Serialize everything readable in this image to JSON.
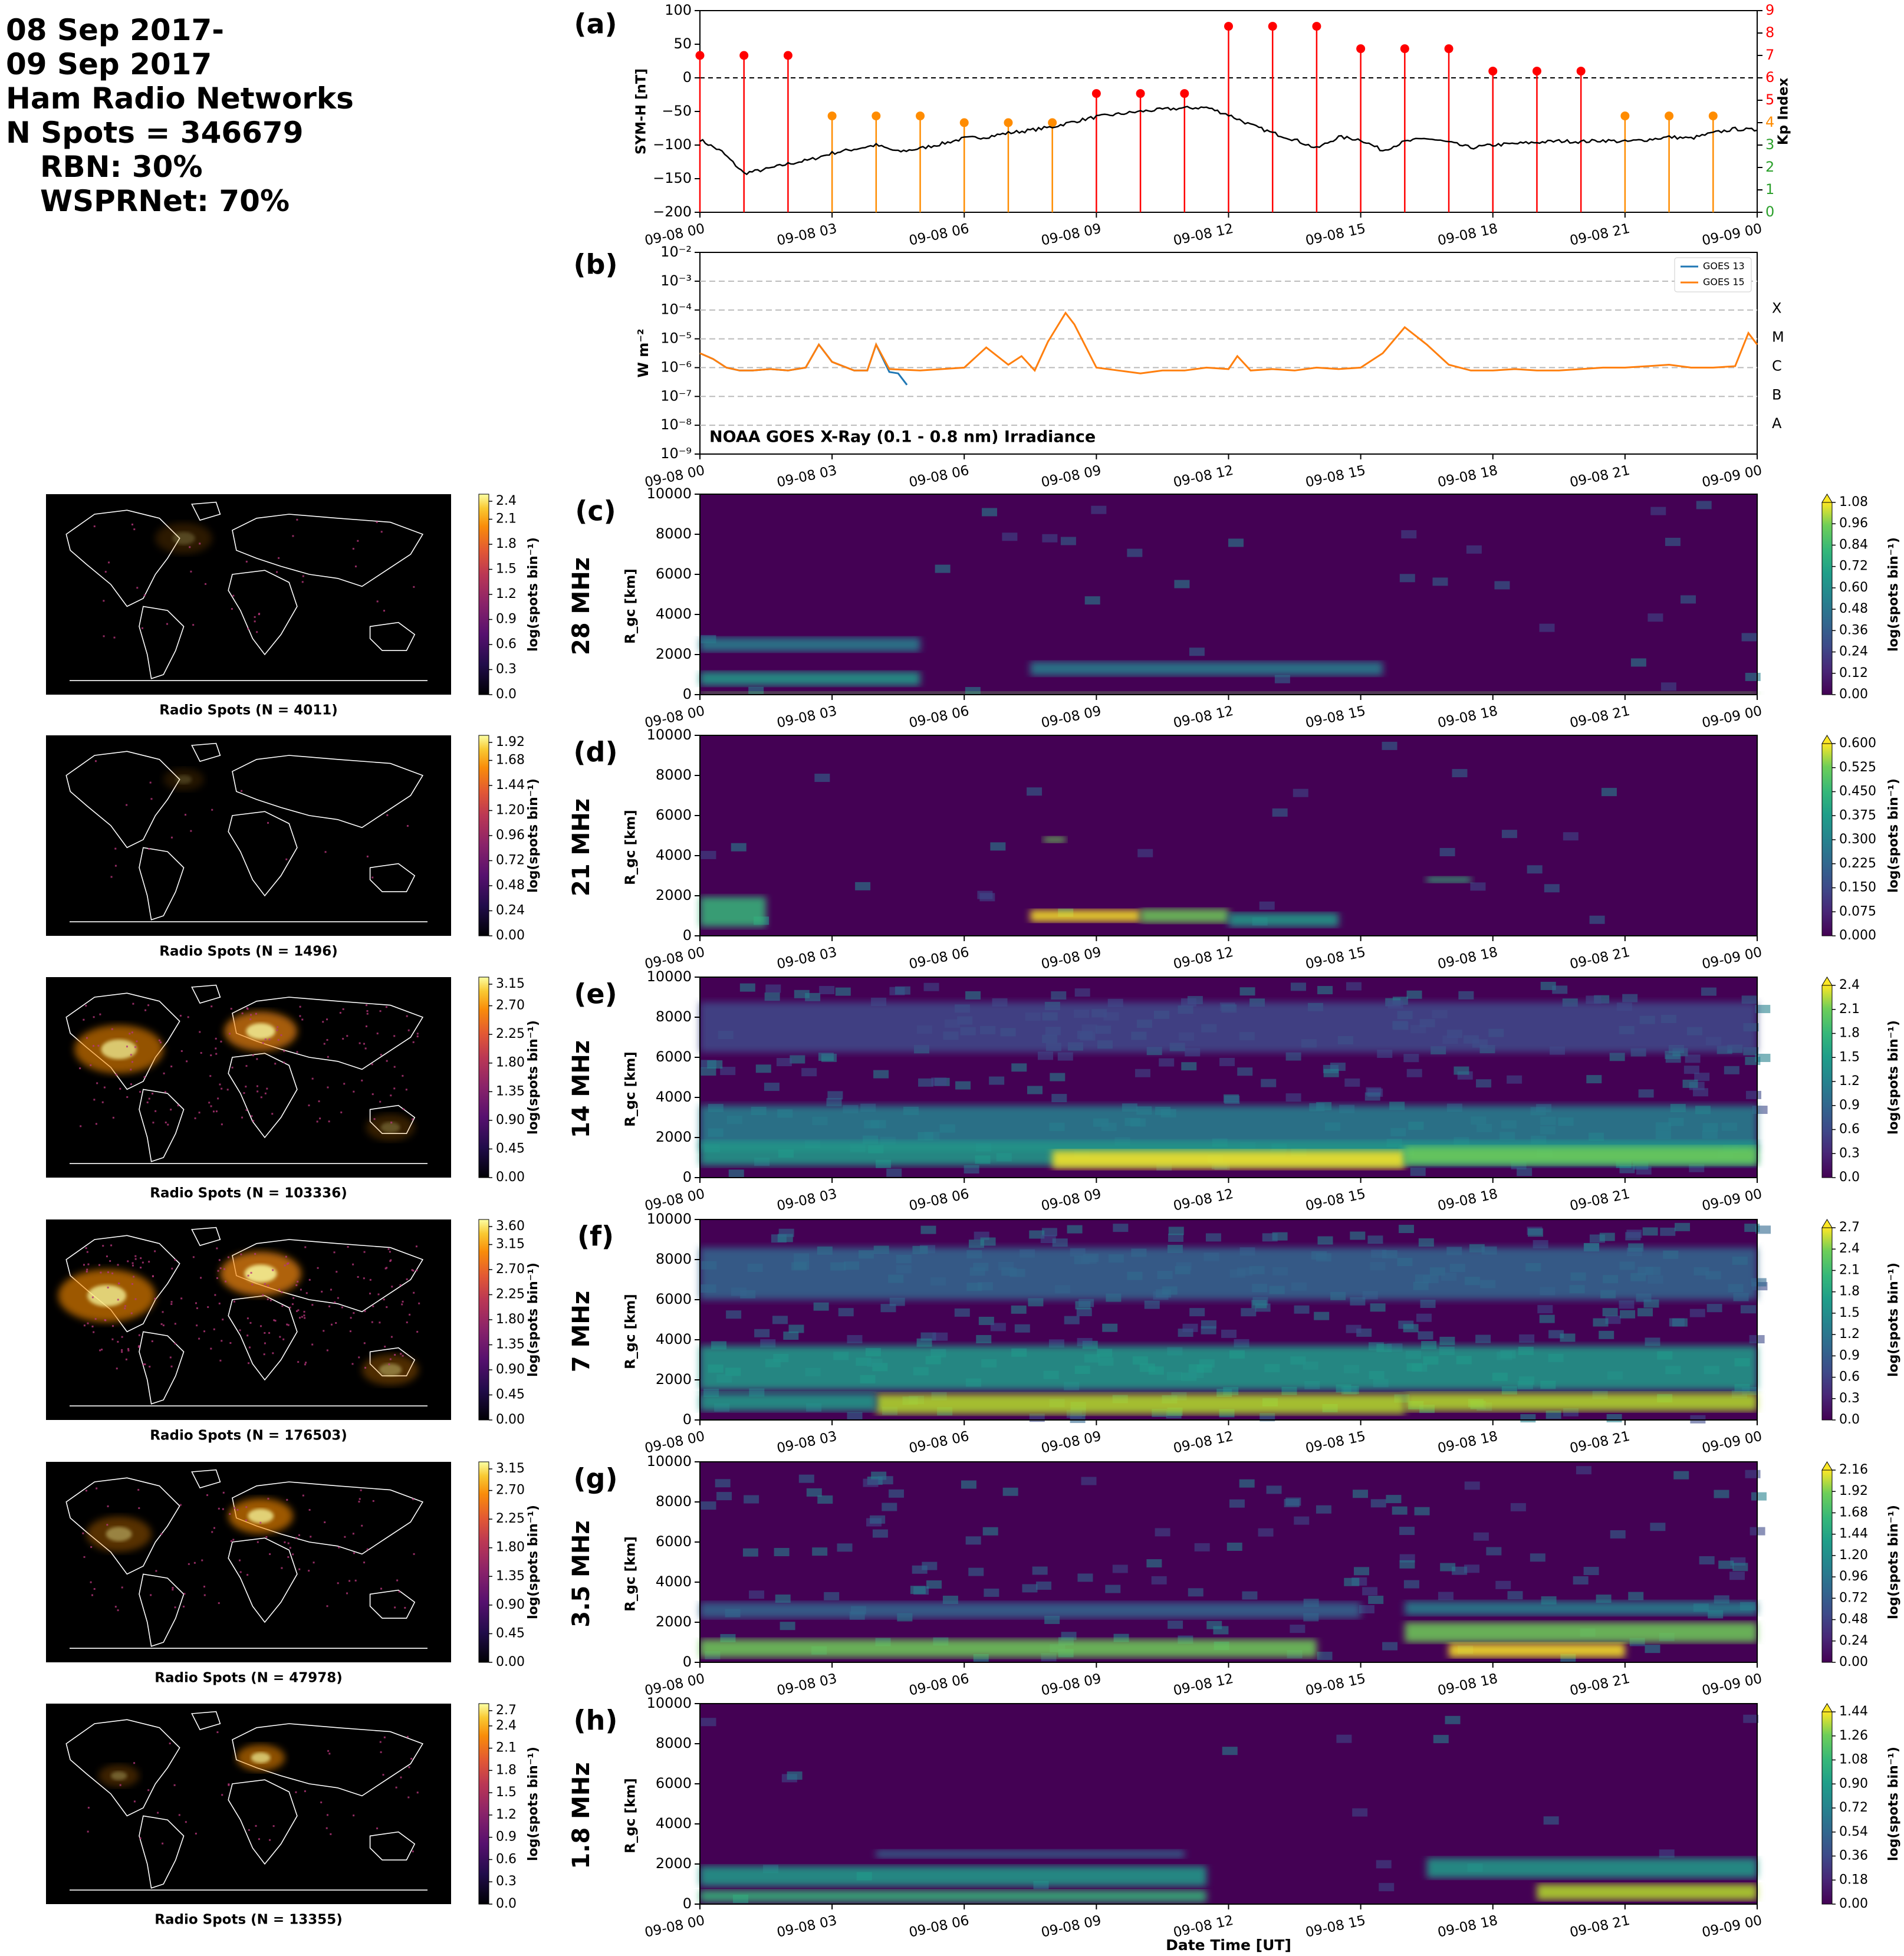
{
  "header": {
    "line1": "08 Sep 2017-",
    "line2": "09 Sep 2017",
    "line3": "Ham Radio Networks",
    "line4": "N Spots = 346679",
    "line5": "RBN: 30%",
    "line6": "WSPRNet: 70%"
  },
  "colors": {
    "symh": "#000000",
    "kp_low": "#ff8c00",
    "kp_high": "#ff0000",
    "kp_axis": "#ff0000",
    "goes13": "#1f77b4",
    "goes15": "#ff7f0e",
    "map_bg": "#000000",
    "coast": "#ffffff",
    "axis": "#000000"
  },
  "time_ticks": [
    "09-08 00",
    "09-08 03",
    "09-08 06",
    "09-08 09",
    "09-08 12",
    "09-08 15",
    "09-08 18",
    "09-08 21",
    "09-09 00"
  ],
  "xlabel": "Date Time [UT]",
  "chart_data": [
    {
      "id": "a",
      "type": "line",
      "panel_label": "(a)",
      "ylabel": "SYM-H [nT]",
      "ylabel_right": "Kp Index",
      "ylim": [
        -200,
        100
      ],
      "yticks": [
        "100",
        "50",
        "0",
        "−50",
        "−100",
        "−150",
        "−200"
      ],
      "ylim_right": [
        0,
        9
      ],
      "yticks_right": [
        "9",
        "8",
        "7",
        "6",
        "5",
        "4",
        "3",
        "2",
        "1",
        "0"
      ],
      "x_hours": [
        0,
        0.5,
        1,
        1.5,
        2,
        2.5,
        3,
        3.5,
        4,
        4.5,
        5,
        5.5,
        6,
        6.5,
        7,
        7.5,
        8,
        8.5,
        9,
        9.5,
        10,
        10.5,
        11,
        11.5,
        12,
        12.5,
        13,
        13.5,
        14,
        14.5,
        15,
        15.5,
        16,
        16.5,
        17,
        17.5,
        18,
        18.5,
        19,
        19.5,
        20,
        20.5,
        21,
        21.5,
        22,
        22.5,
        23,
        23.5,
        24
      ],
      "symh": [
        -92,
        -110,
        -142,
        -136,
        -128,
        -122,
        -112,
        -106,
        -100,
        -110,
        -105,
        -98,
        -90,
        -88,
        -82,
        -78,
        -73,
        -65,
        -58,
        -54,
        -50,
        -47,
        -45,
        -44,
        -55,
        -70,
        -82,
        -92,
        -105,
        -88,
        -92,
        -108,
        -95,
        -90,
        -96,
        -104,
        -100,
        -98,
        -96,
        -94,
        -95,
        -93,
        -95,
        -92,
        -88,
        -90,
        -82,
        -76,
        -78
      ],
      "kp": {
        "x_hours": [
          0,
          1,
          2,
          3,
          4,
          5,
          6,
          7,
          8,
          9,
          10,
          11,
          12,
          13,
          14,
          15,
          16,
          17,
          18,
          19,
          20,
          21,
          22,
          23
        ],
        "values": [
          7,
          7,
          7,
          4.3,
          4.3,
          4.3,
          4,
          4,
          4,
          5.3,
          5.3,
          5.3,
          8.3,
          8.3,
          8.3,
          7.3,
          7.3,
          7.3,
          6.3,
          6.3,
          6.3,
          4.3,
          4.3,
          4.3
        ]
      }
    },
    {
      "id": "b",
      "type": "line",
      "panel_label": "(b)",
      "ylabel": "W m⁻²",
      "ylim_exp": [
        -9,
        -2
      ],
      "yticks": [
        "10⁻²",
        "10⁻³",
        "10⁻⁴",
        "10⁻⁵",
        "10⁻⁶",
        "10⁻⁷",
        "10⁻⁸",
        "10⁻⁹"
      ],
      "flare_classes": [
        "X",
        "M",
        "C",
        "B",
        "A"
      ],
      "annotation": "NOAA GOES X-Ray (0.1 - 0.8 nm) Irradiance",
      "series": [
        {
          "name": "GOES 13",
          "x_hours": [
            0,
            0.3,
            0.6,
            0.9,
            1.2,
            1.6,
            2,
            2.4,
            2.7,
            3,
            3.5,
            3.8,
            4,
            4.3,
            4.5,
            4.7
          ],
          "log_values": [
            -5.5,
            -5.7,
            -6.0,
            -6.1,
            -6.1,
            -6.05,
            -6.1,
            -6.0,
            -5.2,
            -5.8,
            -6.1,
            -6.1,
            -5.2,
            -6.15,
            -6.2,
            -6.6
          ]
        },
        {
          "name": "GOES 15",
          "x_hours": [
            0,
            0.3,
            0.6,
            0.9,
            1.2,
            1.6,
            2,
            2.4,
            2.7,
            3,
            3.5,
            3.8,
            4,
            4.3,
            5,
            5.5,
            6,
            6.5,
            7,
            7.3,
            7.6,
            7.9,
            8.3,
            8.5,
            9,
            9.5,
            10,
            10.5,
            11,
            11.5,
            12,
            12.2,
            12.5,
            13,
            13.5,
            14,
            14.5,
            15,
            15.5,
            16,
            16.5,
            17,
            17.5,
            18,
            18.5,
            19,
            19.5,
            20,
            20.5,
            21,
            21.5,
            22,
            22.5,
            23,
            23.5,
            23.8,
            24
          ],
          "log_values": [
            -5.5,
            -5.7,
            -6.0,
            -6.1,
            -6.1,
            -6.05,
            -6.1,
            -6.0,
            -5.2,
            -5.8,
            -6.1,
            -6.1,
            -5.2,
            -6.05,
            -6.1,
            -6.05,
            -6.0,
            -5.3,
            -5.9,
            -5.6,
            -6.1,
            -5.1,
            -4.1,
            -4.5,
            -6.0,
            -6.1,
            -6.2,
            -6.1,
            -6.1,
            -6.0,
            -6.05,
            -5.6,
            -6.1,
            -6.05,
            -6.1,
            -6.0,
            -6.05,
            -6.0,
            -5.5,
            -4.6,
            -5.2,
            -5.9,
            -6.1,
            -6.1,
            -6.05,
            -6.1,
            -6.1,
            -6.05,
            -6.0,
            -6.0,
            -5.95,
            -5.9,
            -6.0,
            -6.0,
            -5.95,
            -4.8,
            -5.2
          ]
        }
      ]
    },
    {
      "id": "c",
      "type": "heatmap",
      "panel_label": "(c)",
      "freq": "28 MHz",
      "ylabel": "R_gc [km]",
      "ylim": [
        0,
        10000
      ],
      "yticks": [
        "10000",
        "8000",
        "6000",
        "4000",
        "2000",
        "0"
      ],
      "cbar_label": "log(spots bin⁻¹)",
      "cbar_ticks": [
        "1.08",
        "0.96",
        "0.84",
        "0.72",
        "0.60",
        "0.48",
        "0.36",
        "0.24",
        "0.12",
        "0.00"
      ],
      "vmax": 1.08
    },
    {
      "id": "d",
      "type": "heatmap",
      "panel_label": "(d)",
      "freq": "21 MHz",
      "ylabel": "R_gc [km]",
      "ylim": [
        0,
        10000
      ],
      "yticks": [
        "10000",
        "8000",
        "6000",
        "4000",
        "2000",
        "0"
      ],
      "cbar_label": "log(spots bin⁻¹)",
      "cbar_ticks": [
        "0.600",
        "0.525",
        "0.450",
        "0.375",
        "0.300",
        "0.225",
        "0.150",
        "0.075",
        "0.000"
      ],
      "vmax": 0.6
    },
    {
      "id": "e",
      "type": "heatmap",
      "panel_label": "(e)",
      "freq": "14 MHz",
      "ylabel": "R_gc [km]",
      "ylim": [
        0,
        10000
      ],
      "yticks": [
        "10000",
        "8000",
        "6000",
        "4000",
        "2000",
        "0"
      ],
      "cbar_label": "log(spots bin⁻¹)",
      "cbar_ticks": [
        "2.4",
        "2.1",
        "1.8",
        "1.5",
        "1.2",
        "0.9",
        "0.6",
        "0.3",
        "0.0"
      ],
      "vmax": 2.4
    },
    {
      "id": "f",
      "type": "heatmap",
      "panel_label": "(f)",
      "freq": "7 MHz",
      "ylabel": "R_gc [km]",
      "ylim": [
        0,
        10000
      ],
      "yticks": [
        "10000",
        "8000",
        "6000",
        "4000",
        "2000",
        "0"
      ],
      "cbar_label": "log(spots bin⁻¹)",
      "cbar_ticks": [
        "2.7",
        "2.4",
        "2.1",
        "1.8",
        "1.5",
        "1.2",
        "0.9",
        "0.6",
        "0.3",
        "0.0"
      ],
      "vmax": 2.7
    },
    {
      "id": "g",
      "type": "heatmap",
      "panel_label": "(g)",
      "freq": "3.5 MHz",
      "ylabel": "R_gc [km]",
      "ylim": [
        0,
        10000
      ],
      "yticks": [
        "10000",
        "8000",
        "6000",
        "4000",
        "2000",
        "0"
      ],
      "cbar_label": "log(spots bin⁻¹)",
      "cbar_ticks": [
        "2.16",
        "1.92",
        "1.68",
        "1.44",
        "1.20",
        "0.96",
        "0.72",
        "0.48",
        "0.24",
        "0.00"
      ],
      "vmax": 2.16
    },
    {
      "id": "h",
      "type": "heatmap",
      "panel_label": "(h)",
      "freq": "1.8 MHz",
      "ylabel": "R_gc [km]",
      "ylim": [
        0,
        10000
      ],
      "yticks": [
        "10000",
        "8000",
        "6000",
        "4000",
        "2000",
        "0"
      ],
      "cbar_label": "log(spots bin⁻¹)",
      "cbar_ticks": [
        "1.44",
        "1.26",
        "1.08",
        "0.90",
        "0.72",
        "0.54",
        "0.36",
        "0.18",
        "0.00"
      ],
      "vmax": 1.44
    }
  ],
  "maps": [
    {
      "caption": "Radio Spots (N = 4011)",
      "cbar_label": "log(spots bin⁻¹)",
      "cbar_ticks": [
        "2.4",
        "2.1",
        "1.8",
        "1.5",
        "1.2",
        "0.9",
        "0.6",
        "0.3",
        "0.0"
      ]
    },
    {
      "caption": "Radio Spots (N = 1496)",
      "cbar_label": "log(spots bin⁻¹)",
      "cbar_ticks": [
        "1.92",
        "1.68",
        "1.44",
        "1.20",
        "0.96",
        "0.72",
        "0.48",
        "0.24",
        "0.00"
      ]
    },
    {
      "caption": "Radio Spots (N = 103336)",
      "cbar_label": "log(spots bin⁻¹)",
      "cbar_ticks": [
        "3.15",
        "2.70",
        "2.25",
        "1.80",
        "1.35",
        "0.90",
        "0.45",
        "0.00"
      ]
    },
    {
      "caption": "Radio Spots (N = 176503)",
      "cbar_label": "log(spots bin⁻¹)",
      "cbar_ticks": [
        "3.60",
        "3.15",
        "2.70",
        "2.25",
        "1.80",
        "1.35",
        "0.90",
        "0.45",
        "0.00"
      ]
    },
    {
      "caption": "Radio Spots (N = 47978)",
      "cbar_label": "log(spots bin⁻¹)",
      "cbar_ticks": [
        "3.15",
        "2.70",
        "2.25",
        "1.80",
        "1.35",
        "0.90",
        "0.45",
        "0.00"
      ]
    },
    {
      "caption": "Radio Spots (N = 13355)",
      "cbar_label": "log(spots bin⁻¹)",
      "cbar_ticks": [
        "2.7",
        "2.4",
        "2.1",
        "1.8",
        "1.5",
        "1.2",
        "0.9",
        "0.6",
        "0.3",
        "0.0"
      ]
    }
  ]
}
